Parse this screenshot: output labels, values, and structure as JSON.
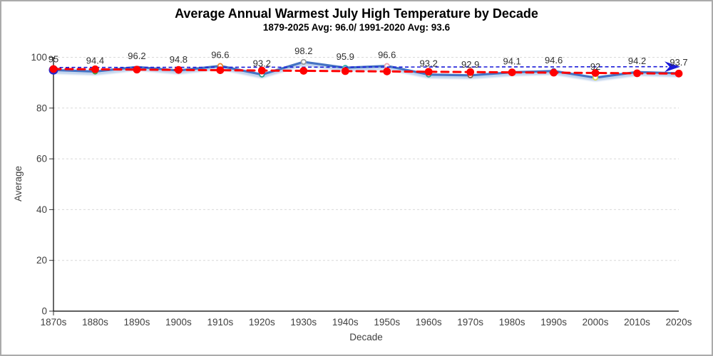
{
  "window": {
    "background": "#ffffff",
    "border_color": "#ababab"
  },
  "header": {
    "title": "Average Annual Warmest July High Temperature by Decade",
    "subtitle": "1879-2025 Avg: 96.0/ 1991-2020 Avg: 93.6"
  },
  "chart_data": {
    "type": "line",
    "title": "Average Annual Warmest July High Temperature by Decade",
    "subtitle": "1879-2025 Avg: 96.0/ 1991-2020 Avg: 93.6",
    "xlabel": "Decade",
    "ylabel": "Average",
    "ylim": [
      0,
      100
    ],
    "yticks": [
      0,
      20,
      40,
      60,
      80,
      100
    ],
    "grid": true,
    "legend_position": "none",
    "categories": [
      "1870s",
      "1880s",
      "1890s",
      "1900s",
      "1910s",
      "1920s",
      "1930s",
      "1940s",
      "1950s",
      "1960s",
      "1970s",
      "1980s",
      "1990s",
      "2000s",
      "2010s",
      "2020s"
    ],
    "series": [
      {
        "name": "decade-average",
        "color": "#4472C4",
        "style": "solid",
        "values": [
          95,
          94.4,
          96.2,
          94.8,
          96.6,
          93.2,
          98.2,
          95.9,
          96.6,
          93.2,
          92.9,
          94.1,
          94.6,
          92,
          94.2,
          93.7
        ],
        "labels": [
          "95",
          "94.4",
          "96.2",
          "94.8",
          "96.6",
          "93.2",
          "98.2",
          "95.9",
          "96.6",
          "93.2",
          "92.9",
          "94.1",
          "94.6",
          "92",
          "94.2",
          "93.7"
        ],
        "first_marker_color": "#2727CC",
        "marker_colors": [
          null,
          "#3DA53D",
          null,
          null,
          "#E8862B",
          "#2E9C93",
          "#9B9B9B",
          "#39B5AE",
          "#E8A3B1",
          "#2E9C93",
          "#8A5A44",
          null,
          "#3A55C9",
          "#D9D94A",
          null,
          null
        ]
      },
      {
        "name": "trend-dashed-red",
        "color": "#FF0000",
        "style": "dashed",
        "marker_color": "#FF0000",
        "values": [
          95.4,
          95.28,
          95.16,
          95.04,
          94.92,
          94.8,
          94.68,
          94.56,
          94.44,
          94.32,
          94.2,
          94.08,
          93.96,
          93.84,
          93.72,
          93.6
        ]
      },
      {
        "name": "average-dotted-blue-arrow",
        "color": "#1A1AD9",
        "style": "dotted",
        "arrow_end": true,
        "start_value": 96.0,
        "end_value": 96.3
      }
    ],
    "colors": {
      "gridline": "#d9d9d9",
      "axis": "#000000",
      "tick_text": "#404040",
      "label_text": "#303030",
      "line_shadow": "#aec6e8"
    }
  }
}
